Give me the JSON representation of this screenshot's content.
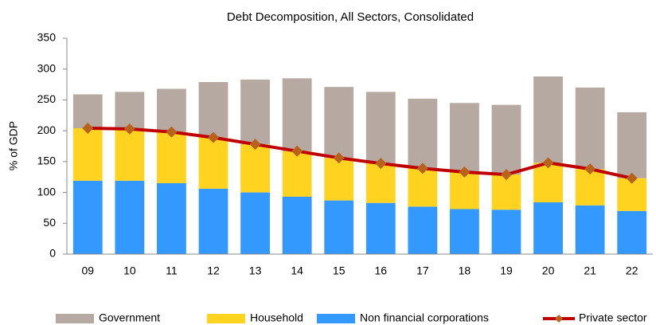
{
  "chart_data": {
    "type": "bar",
    "stacked": true,
    "title": "Debt Decomposition, All Sectors, Consolidated",
    "y_label": "% of GDP",
    "categories": [
      "09",
      "10",
      "11",
      "12",
      "13",
      "14",
      "15",
      "16",
      "17",
      "18",
      "19",
      "20",
      "21",
      "22"
    ],
    "ylim": [
      0,
      350
    ],
    "yticks": [
      0,
      50,
      100,
      150,
      200,
      250,
      300,
      350
    ],
    "grid": false,
    "legend": "bottom",
    "series": [
      {
        "name": "Non financial corporations",
        "color": "#3399ff",
        "values": [
          119,
          119,
          115,
          106,
          100,
          93,
          87,
          83,
          77,
          73,
          72,
          84,
          79,
          70
        ]
      },
      {
        "name": "Household",
        "color": "#ffd320",
        "values": [
          85,
          84,
          83,
          83,
          78,
          74,
          69,
          64,
          62,
          60,
          57,
          64,
          59,
          53
        ]
      },
      {
        "name": "Government",
        "color": "#b6a9a1",
        "values": [
          55,
          60,
          70,
          90,
          105,
          118,
          115,
          116,
          113,
          112,
          113,
          140,
          132,
          107
        ]
      },
      {
        "name": "Private sector",
        "type": "line",
        "color": "#c00000",
        "marker_color": "#b8621b",
        "values": [
          204,
          203,
          198,
          189,
          178,
          167,
          156,
          147,
          139,
          133,
          129,
          148,
          138,
          123
        ]
      }
    ]
  }
}
